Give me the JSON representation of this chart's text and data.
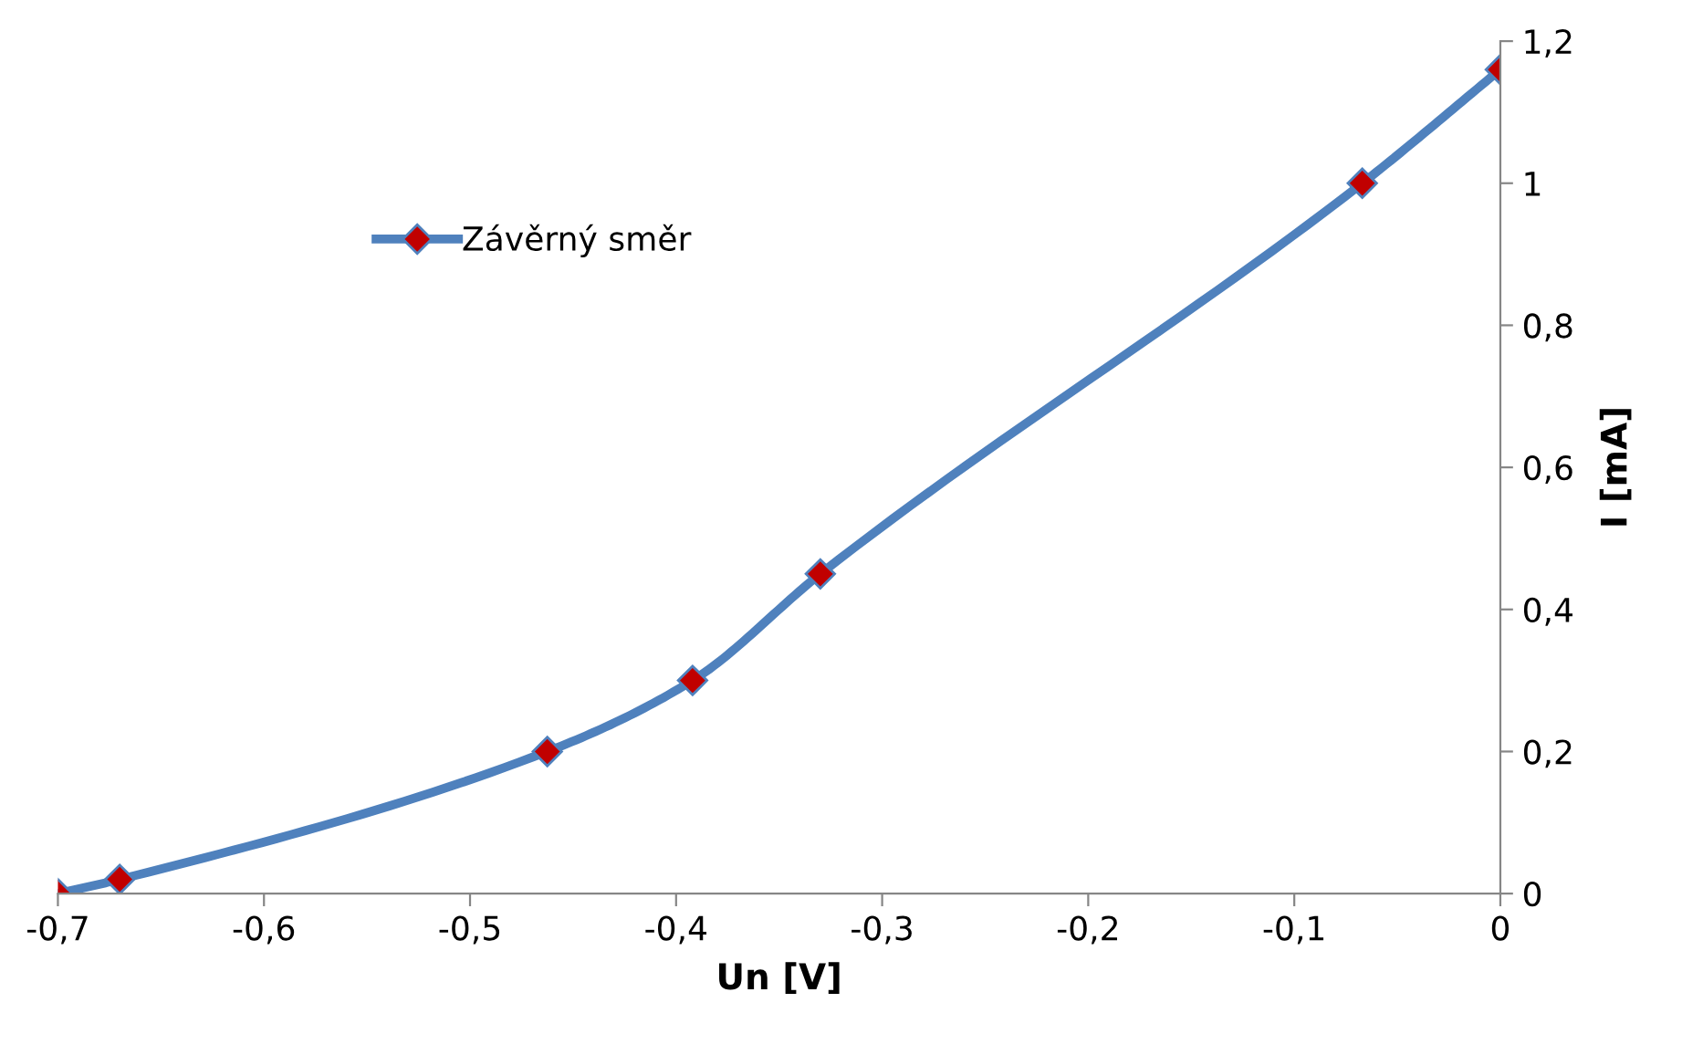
{
  "chart_data": {
    "type": "line",
    "xlabel": "Un [V]",
    "ylabel": "I [mA]",
    "x": [
      -0.7,
      -0.67,
      -0.4625,
      -0.392,
      -0.33,
      -0.067,
      0
    ],
    "series": [
      {
        "name": "Závěrný směr",
        "color": "#4f81bd",
        "values": [
          0,
          0.02,
          0.2,
          0.3,
          0.45,
          1.0,
          1.16
        ]
      }
    ],
    "marker": "diamond",
    "line_style": "solid",
    "legend": "top left",
    "grid": false,
    "xlim": [
      -0.7,
      0
    ],
    "ylim": [
      0,
      1.2
    ],
    "xticks": [
      {
        "value": -0.7,
        "label": "-0,7"
      },
      {
        "value": -0.6,
        "label": "-0,6"
      },
      {
        "value": -0.5,
        "label": "-0,5"
      },
      {
        "value": -0.4,
        "label": "-0,4"
      },
      {
        "value": -0.3,
        "label": "-0,3"
      },
      {
        "value": -0.2,
        "label": "-0,2"
      },
      {
        "value": -0.1,
        "label": "-0,1"
      },
      0
    ],
    "yticks": [
      0,
      {
        "value": 0.2,
        "label": "0,2"
      },
      {
        "value": 0.4,
        "label": "0,4"
      },
      {
        "value": 0.6,
        "label": "0,6"
      },
      {
        "value": 0.8,
        "label": "0,8"
      },
      1,
      {
        "value": 1.2,
        "label": "1,2"
      }
    ]
  }
}
